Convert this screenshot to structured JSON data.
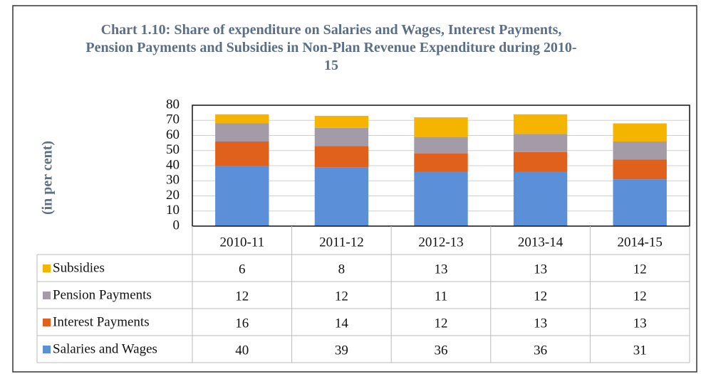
{
  "chart_data": {
    "type": "stacked_bar",
    "title": "Chart 1.10: Share of expenditure on Salaries and Wages, Interest Payments, Pension Payments and Subsidies in Non-Plan Revenue Expenditure during 2010-15",
    "y_label": "(in per cent)",
    "categories": [
      "2010-11",
      "2011-12",
      "2012-13",
      "2013-14",
      "2014-15"
    ],
    "series": [
      {
        "name": "Salaries and Wages",
        "color": "#5b8fd8",
        "values": [
          40,
          39,
          36,
          36,
          31
        ]
      },
      {
        "name": "Interest Payments",
        "color": "#e0611c",
        "values": [
          16,
          14,
          12,
          13,
          13
        ]
      },
      {
        "name": "Pension Payments",
        "color": "#a39ca8",
        "values": [
          12,
          12,
          11,
          12,
          12
        ]
      },
      {
        "name": "Subsidies",
        "color": "#f4b400",
        "values": [
          6,
          8,
          13,
          13,
          12
        ]
      }
    ],
    "ylim": [
      0,
      80
    ],
    "yticks": [
      0,
      10,
      20,
      30,
      40,
      50,
      60,
      70,
      80
    ],
    "grid": true,
    "legend": "table"
  }
}
